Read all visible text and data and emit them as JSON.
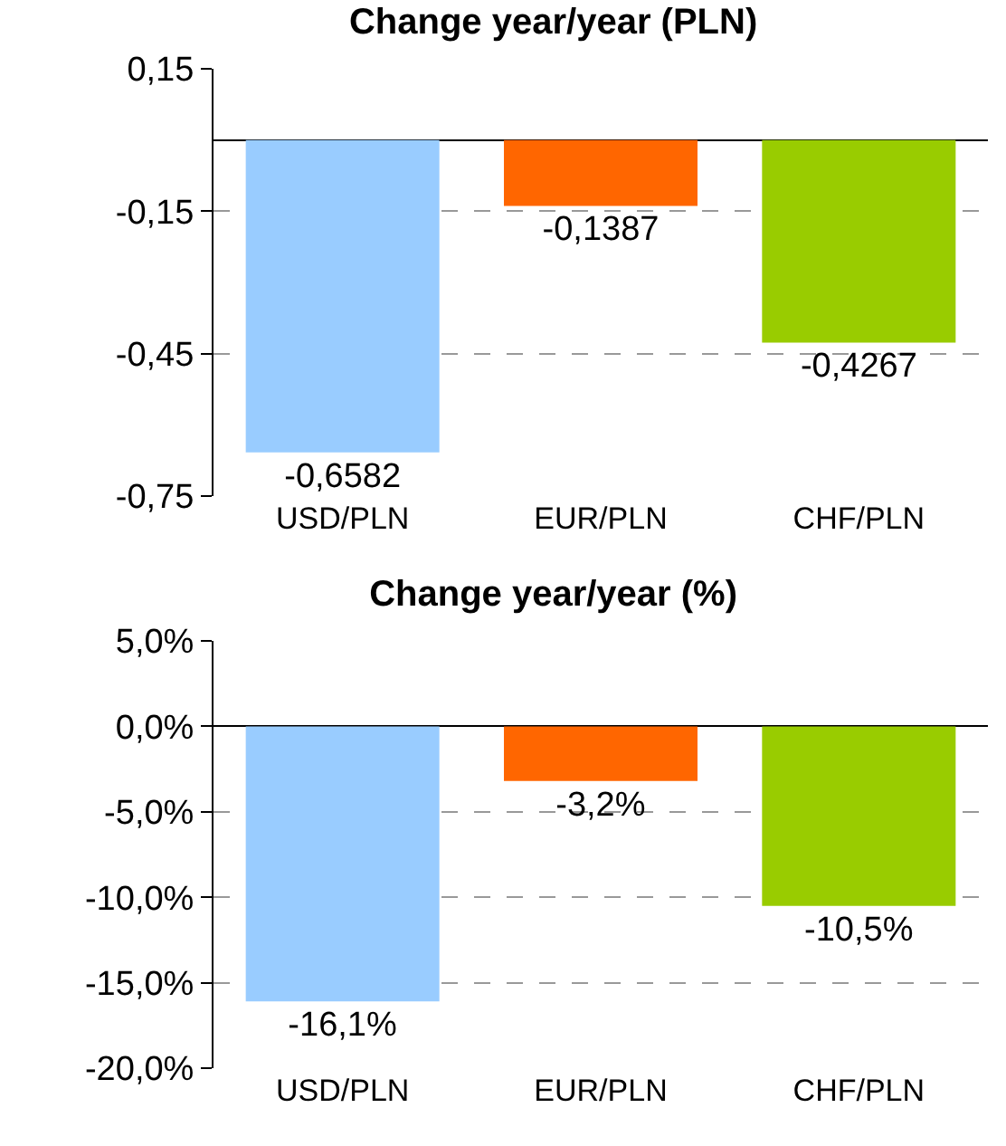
{
  "chart_data": [
    {
      "type": "bar",
      "title": "Change year/year (PLN)",
      "categories": [
        "USD/PLN",
        "EUR/PLN",
        "CHF/PLN"
      ],
      "values": [
        -0.6582,
        -0.1387,
        -0.4267
      ],
      "colors": [
        "#99ccff",
        "#ff6600",
        "#99cc00"
      ],
      "value_labels": [
        "-0,6582",
        "-0,1387",
        "-0,4267"
      ],
      "ylim": [
        -0.75,
        0.15
      ],
      "yticks": [
        {
          "value": 0.15,
          "label": "0,15"
        },
        {
          "value": -0.15,
          "label": "-0,15"
        },
        {
          "value": -0.45,
          "label": "-0,45"
        },
        {
          "value": -0.75,
          "label": "-0,75"
        }
      ],
      "grid": "y"
    },
    {
      "type": "bar",
      "title": "Change year/year (%)",
      "categories": [
        "USD/PLN",
        "EUR/PLN",
        "CHF/PLN"
      ],
      "values": [
        -16.1,
        -3.2,
        -10.5
      ],
      "colors": [
        "#99ccff",
        "#ff6600",
        "#99cc00"
      ],
      "value_labels": [
        "-16,1%",
        "-3,2%",
        "-10,5%"
      ],
      "ylim": [
        -20,
        5
      ],
      "yticks": [
        {
          "value": 5,
          "label": "5,0%"
        },
        {
          "value": 0,
          "label": "0,0%"
        },
        {
          "value": -5,
          "label": "-5,0%"
        },
        {
          "value": -10,
          "label": "-10,0%"
        },
        {
          "value": -15,
          "label": "-15,0%"
        },
        {
          "value": -20,
          "label": "-20,0%"
        }
      ],
      "grid": "y"
    }
  ]
}
